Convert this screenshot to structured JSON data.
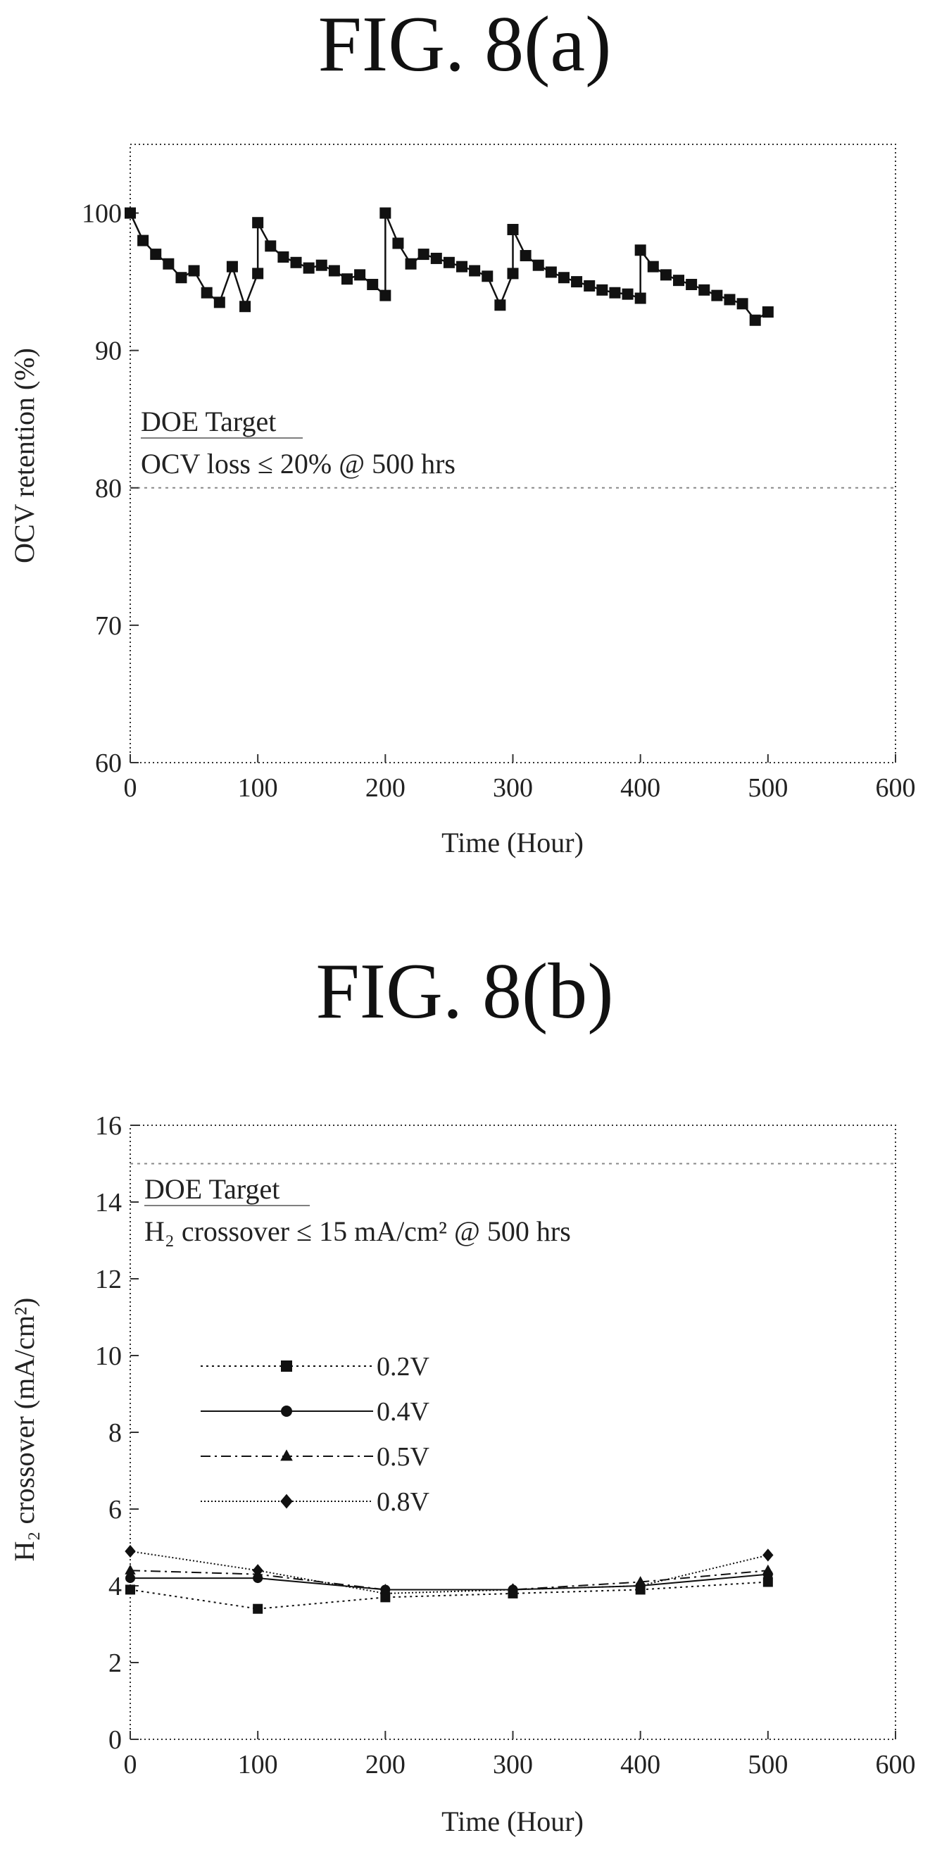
{
  "figures": {
    "a_title": "FIG. 8(a)",
    "b_title": "FIG. 8(b)"
  },
  "chart_data": [
    {
      "type": "line",
      "title": "FIG. 8(a)",
      "xlabel": "Time  (Hour)",
      "ylabel": "OCV retention (%)",
      "xlim": [
        0,
        600
      ],
      "ylim": [
        60,
        105
      ],
      "xticks": [
        0,
        100,
        200,
        300,
        400,
        500,
        600
      ],
      "yticks": [
        60,
        70,
        80,
        90,
        100
      ],
      "grid": false,
      "target_line": 80,
      "annotations": [
        "DOE Target",
        "OCV loss ≤ 20% @ 500 hrs"
      ],
      "series": [
        {
          "marker": "square",
          "x": [
            0,
            10,
            20,
            30,
            40,
            50,
            60,
            70,
            80,
            90,
            100,
            100,
            110,
            120,
            130,
            140,
            150,
            160,
            170,
            180,
            190,
            200,
            200,
            210,
            220,
            230,
            240,
            250,
            260,
            270,
            280,
            290,
            300,
            300,
            310,
            320,
            330,
            340,
            350,
            360,
            370,
            380,
            390,
            400,
            400,
            410,
            420,
            430,
            440,
            450,
            460,
            470,
            480,
            490,
            500
          ],
          "y": [
            100,
            98,
            97,
            96.3,
            95.3,
            95.8,
            94.2,
            93.5,
            96.1,
            93.2,
            95.6,
            99.3,
            97.6,
            96.8,
            96.4,
            96,
            96.2,
            95.8,
            95.2,
            95.5,
            94.8,
            94,
            100,
            97.8,
            96.3,
            97,
            96.7,
            96.4,
            96.1,
            95.8,
            95.4,
            93.3,
            95.6,
            98.8,
            96.9,
            96.2,
            95.7,
            95.3,
            95,
            94.7,
            94.4,
            94.2,
            94.1,
            93.8,
            97.3,
            96.1,
            95.5,
            95.1,
            94.8,
            94.4,
            94,
            93.7,
            93.4,
            92.2,
            92.8
          ]
        }
      ]
    },
    {
      "type": "line",
      "title": "FIG. 8(b)",
      "xlabel": "Time  (Hour)",
      "ylabel": "H₂ crossover (mA/cm²)",
      "xlim": [
        0,
        600
      ],
      "ylim": [
        0,
        16
      ],
      "xticks": [
        0,
        100,
        200,
        300,
        400,
        500,
        600
      ],
      "yticks": [
        0,
        2,
        4,
        6,
        8,
        10,
        12,
        14,
        16
      ],
      "grid": false,
      "target_line": 15,
      "annotations": [
        "DOE Target",
        "H₂ crossover ≤ 15 mA/cm² @ 500 hrs"
      ],
      "legend": "center-left",
      "x": [
        0,
        100,
        200,
        300,
        400,
        500
      ],
      "series": [
        {
          "name": "0.2V",
          "marker": "square",
          "dash": "dotted",
          "values": [
            3.9,
            3.4,
            3.7,
            3.8,
            3.9,
            4.1
          ]
        },
        {
          "name": "0.4V",
          "marker": "circle",
          "dash": "solid",
          "values": [
            4.2,
            4.2,
            3.9,
            3.9,
            4.0,
            4.3
          ]
        },
        {
          "name": "0.5V",
          "marker": "triangle",
          "dash": "dashdot",
          "values": [
            4.4,
            4.3,
            3.9,
            3.9,
            4.1,
            4.4
          ]
        },
        {
          "name": "0.8V",
          "marker": "diamond",
          "dash": "finedot",
          "values": [
            4.9,
            4.4,
            3.8,
            3.9,
            4.0,
            4.8
          ]
        }
      ]
    }
  ],
  "colors": {
    "ink": "#111111",
    "axis": "#333333",
    "target": "#888888"
  }
}
